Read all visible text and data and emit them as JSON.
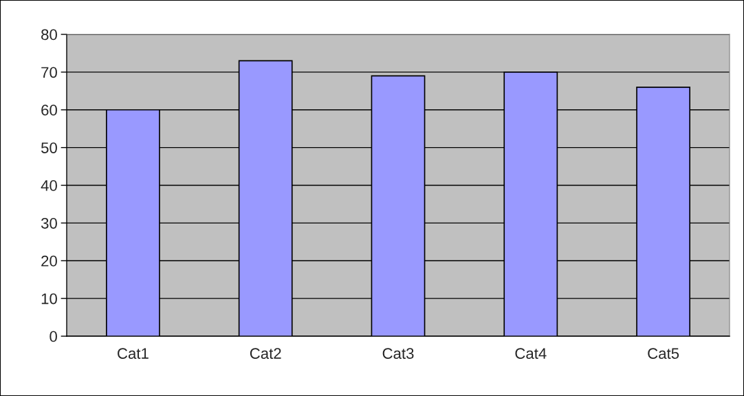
{
  "chart_data": {
    "type": "bar",
    "categories": [
      "Cat1",
      "Cat2",
      "Cat3",
      "Cat4",
      "Cat5"
    ],
    "values": [
      60,
      73,
      69,
      70,
      66
    ],
    "color": "#9999ff",
    "ylim": [
      0,
      80
    ],
    "yticks": [
      0,
      10,
      20,
      30,
      40,
      50,
      60,
      70,
      80
    ],
    "grid": "y",
    "legend": false
  }
}
